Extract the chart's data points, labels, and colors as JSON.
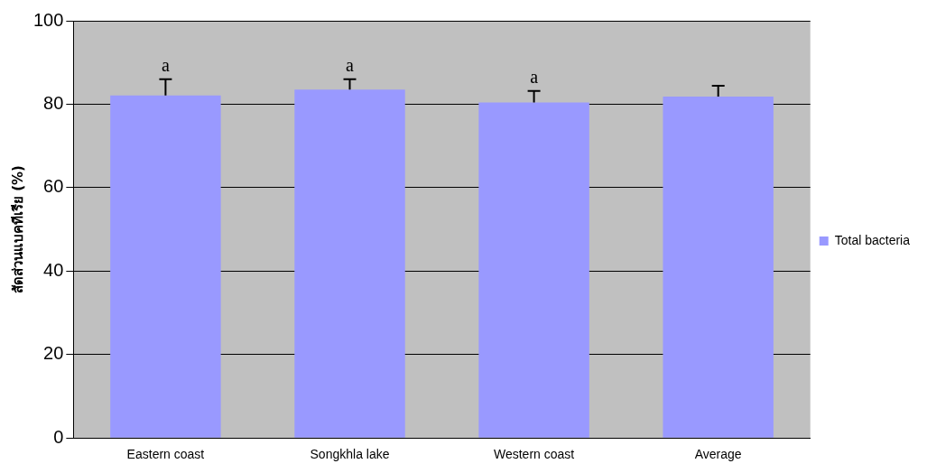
{
  "chart_data": {
    "type": "bar",
    "ylabel": "สัดส่วนแบคทีเรีย (%)",
    "categories": [
      "Eastern coast",
      "Songkhla lake",
      "Western coast",
      "Average"
    ],
    "series": [
      {
        "name": "Total bacteria",
        "color": "#9999ff",
        "values": [
          82.1,
          83.5,
          80.4,
          81.8
        ],
        "errors": [
          [
            82.1,
            86.0
          ],
          [
            83.5,
            86.0
          ],
          [
            80.4,
            83.2
          ],
          [
            81.8,
            84.4
          ]
        ]
      }
    ],
    "ylim": [
      0,
      100
    ],
    "yticks": [
      0,
      20,
      40,
      60,
      80,
      100
    ],
    "grid": "y",
    "legend": "right",
    "annotations": [
      {
        "text": "a",
        "x": "Eastern coast",
        "y": 86.0
      },
      {
        "text": "a",
        "x": "Songkhla lake",
        "y": 86.0
      },
      {
        "text": "a",
        "x": "Western coast",
        "y": 83.2
      }
    ]
  }
}
